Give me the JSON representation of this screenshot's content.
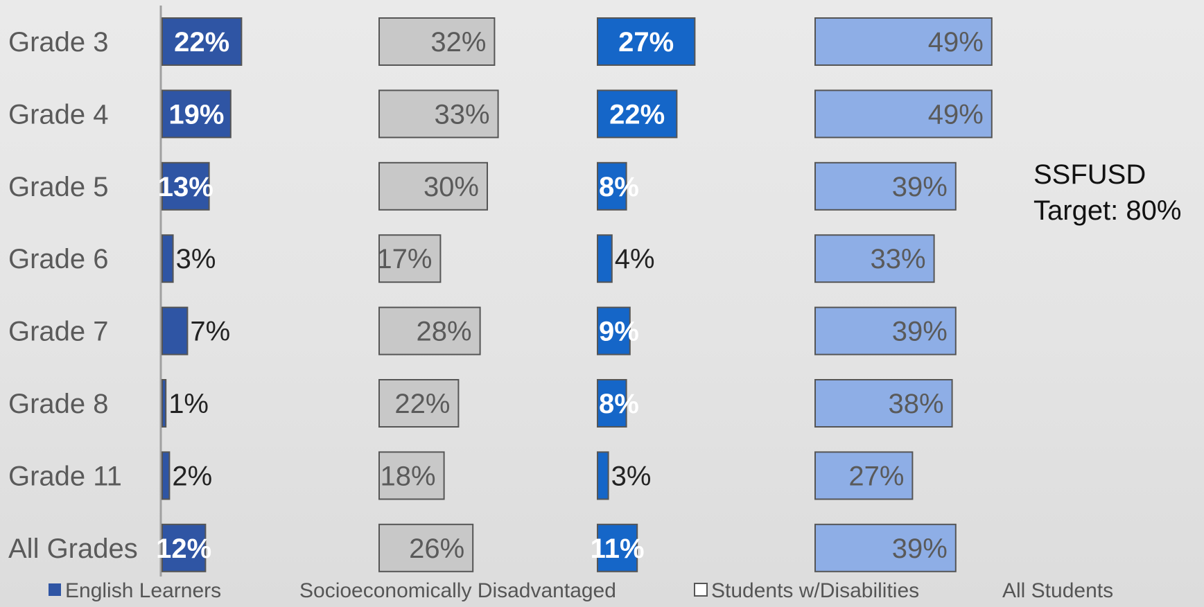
{
  "chart_data": {
    "type": "bar",
    "orientation": "horizontal",
    "categories": [
      "Grade 3",
      "Grade 4",
      "Grade 5",
      "Grade 6",
      "Grade 7",
      "Grade 8",
      "Grade 11",
      "All Grades"
    ],
    "series": [
      {
        "name": "English Learners",
        "values": [
          22,
          19,
          13,
          3,
          7,
          1,
          2,
          12
        ],
        "labels": [
          "22%",
          "19%",
          "13%",
          "3%",
          "7%",
          "1%",
          "2%",
          "12%"
        ],
        "color": "#2f55a4"
      },
      {
        "name": "Socioeconomically Disadvantaged",
        "values": [
          32,
          33,
          30,
          17,
          28,
          22,
          18,
          26
        ],
        "labels": [
          "32%",
          "33%",
          "30%",
          "17%",
          "28%",
          "22%",
          "18%",
          "26%"
        ],
        "color": "#c8c8c8"
      },
      {
        "name": "Students w/Disabilities",
        "values": [
          27,
          22,
          8,
          4,
          9,
          8,
          3,
          11
        ],
        "labels": [
          "27%",
          "22%",
          "8%",
          "4%",
          "9%",
          "8%",
          "3%",
          "11%"
        ],
        "color": "#1566c8"
      },
      {
        "name": "All Students",
        "values": [
          49,
          49,
          39,
          33,
          39,
          38,
          27,
          39
        ],
        "labels": [
          "49%",
          "49%",
          "39%",
          "33%",
          "39%",
          "38%",
          "27%",
          "39%"
        ],
        "color": "#8eaee6"
      }
    ],
    "legend_position": "bottom",
    "annotation": {
      "line1": "SSFUSD",
      "line2": "Target: 80%"
    }
  },
  "colors": {
    "label_text": "#5a5a5a",
    "bar_outline": "#555555",
    "axis": "#a0a0a0"
  }
}
